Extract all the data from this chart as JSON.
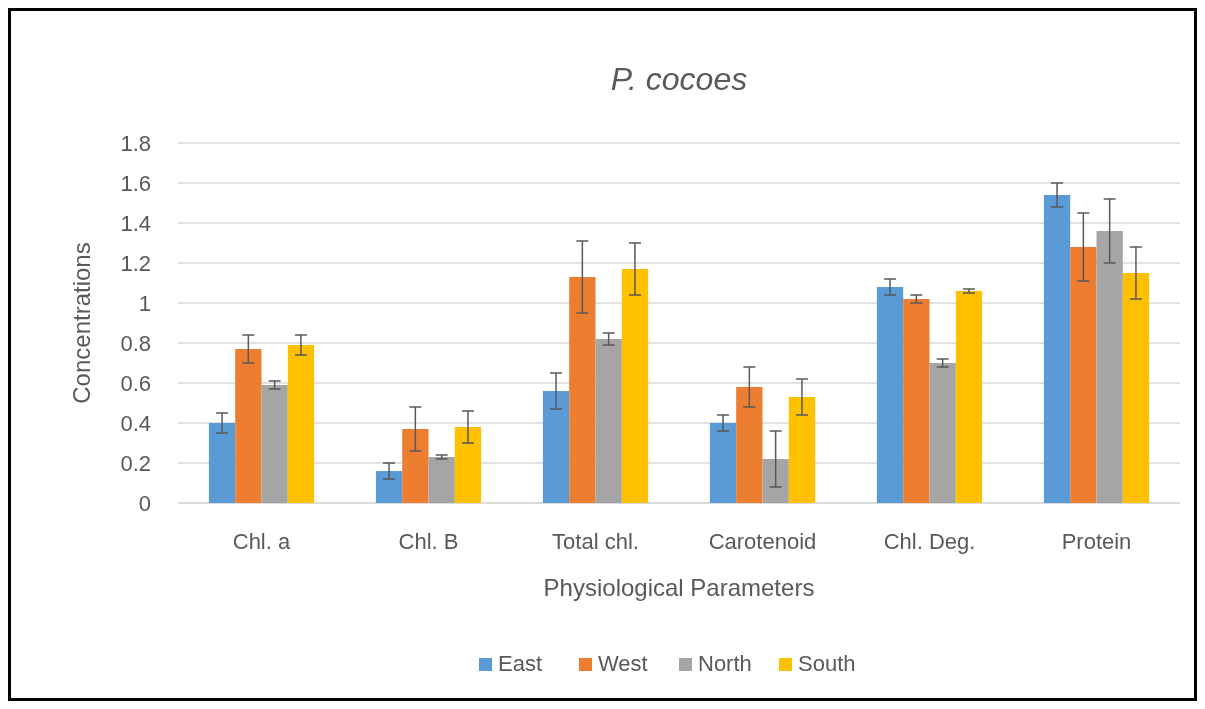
{
  "chart_data": {
    "type": "bar",
    "title": "P. cocoes",
    "xlabel": "Physiological Parameters",
    "ylabel": "Concentrations",
    "categories": [
      "Chl. a",
      "Chl. B",
      "Total chl.",
      "Carotenoid",
      "Chl. Deg.",
      "Protein"
    ],
    "series": [
      {
        "name": "East",
        "color": "#5b9bd5",
        "values": [
          0.4,
          0.16,
          0.56,
          0.4,
          1.08,
          1.54
        ],
        "errors": [
          0.05,
          0.04,
          0.09,
          0.04,
          0.04,
          0.06
        ]
      },
      {
        "name": "West",
        "color": "#ed7d31",
        "values": [
          0.77,
          0.37,
          1.13,
          0.58,
          1.02,
          1.28
        ],
        "errors": [
          0.07,
          0.11,
          0.18,
          0.1,
          0.02,
          0.17
        ]
      },
      {
        "name": "North",
        "color": "#a5a5a5",
        "values": [
          0.59,
          0.23,
          0.82,
          0.22,
          0.7,
          1.36
        ],
        "errors": [
          0.02,
          0.01,
          0.03,
          0.14,
          0.02,
          0.16
        ]
      },
      {
        "name": "South",
        "color": "#ffc000",
        "values": [
          0.79,
          0.38,
          1.17,
          0.53,
          1.06,
          1.15
        ],
        "errors": [
          0.05,
          0.08,
          0.13,
          0.09,
          0.01,
          0.13
        ]
      }
    ],
    "ylim": [
      0,
      1.8
    ],
    "yticks": [
      0,
      0.2,
      0.4,
      0.6,
      0.8,
      1,
      1.2,
      1.4,
      1.6,
      1.8
    ],
    "grid": "y",
    "legend": "bottom"
  }
}
